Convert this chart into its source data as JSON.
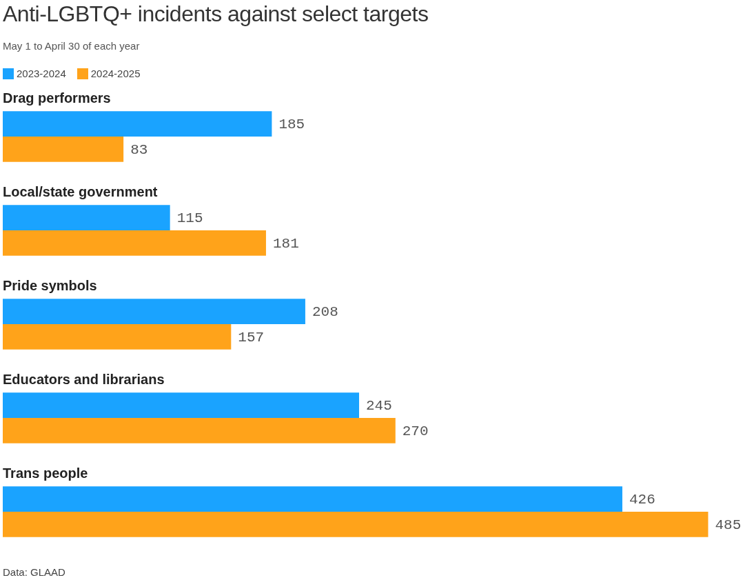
{
  "chart_data": {
    "type": "bar",
    "orientation": "horizontal",
    "title": "Anti-LGBTQ+ incidents against select targets",
    "subtitle": "May 1 to April 30 of each year",
    "categories": [
      "Drag performers",
      "Local/state government",
      "Pride symbols",
      "Educators and librarians",
      "Trans people"
    ],
    "series": [
      {
        "name": "2023-2024",
        "color": "#1aa3ff",
        "values": [
          185,
          115,
          208,
          245,
          426
        ]
      },
      {
        "name": "2024-2025",
        "color": "#ffa31a",
        "values": [
          83,
          181,
          157,
          270,
          485
        ]
      }
    ],
    "data_labels": true,
    "legend": "top left",
    "annotations": [
      "Data: GLAAD"
    ]
  }
}
